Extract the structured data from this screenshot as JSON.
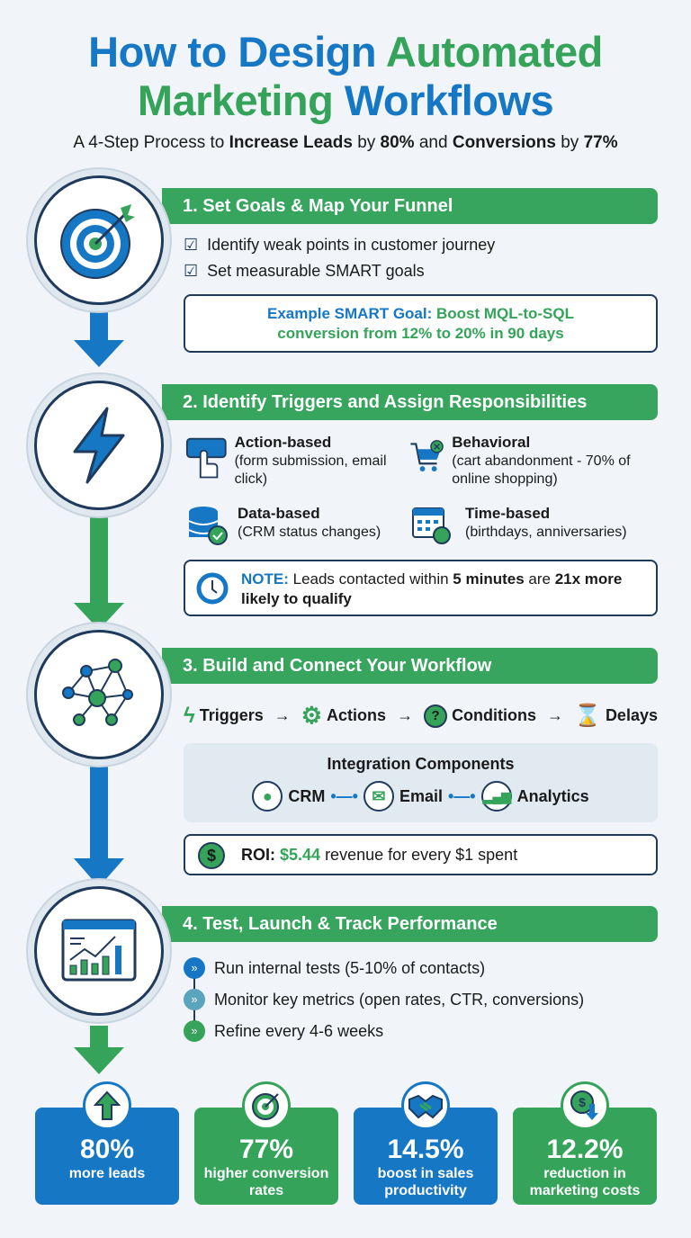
{
  "title": {
    "line1_a": "How to Design",
    "line1_b": "Automated",
    "line2_a": "Marketing",
    "line2_b": "Workflows"
  },
  "subtitle": {
    "p1": "A 4-Step Process to ",
    "b1": "Increase Leads",
    "p2": " by ",
    "b2": "80%",
    "p3": " and ",
    "b3": "Conversions",
    "p4": " by ",
    "b4": "77%"
  },
  "colors": {
    "blue": "#1677c5",
    "green": "#35a35a",
    "dark": "#1f3a5a"
  },
  "step1": {
    "icon": "target-icon",
    "title": "1. Set Goals & Map Your Funnel",
    "bullets": [
      "Identify weak points in customer journey",
      "Set measurable SMART goals"
    ],
    "example_label": "Example SMART Goal:",
    "example_text": "Boost MQL-to-SQL conversion from 12% to 20% in 90 days"
  },
  "step2": {
    "icon": "lightning-icon",
    "title": "2. Identify Triggers and Assign Responsibilities",
    "triggers": [
      {
        "icon": "click-icon",
        "name": "Action-based",
        "desc": "(form submission, email click)"
      },
      {
        "icon": "cart-icon",
        "name": "Behavioral",
        "desc": "(cart abandonment - 70% of online shopping)"
      },
      {
        "icon": "database-icon",
        "name": "Data-based",
        "desc": "(CRM status changes)"
      },
      {
        "icon": "calendar-icon",
        "name": "Time-based",
        "desc": "(birthdays, anniversaries)"
      }
    ],
    "note": {
      "label": "NOTE:",
      "p1": " Leads contacted within ",
      "b1": "5 minutes",
      "p2": " are ",
      "b2": "21x more likely to qualify"
    }
  },
  "step3": {
    "icon": "network-icon",
    "title": "3. Build and Connect Your Workflow",
    "flow": [
      "Triggers",
      "Actions",
      "Conditions",
      "Delays"
    ],
    "integration_title": "Integration Components",
    "integrations": [
      "CRM",
      "Email",
      "Analytics"
    ],
    "roi": {
      "label": "ROI:",
      "value": "$5.44",
      "text": " revenue for every $1 spent"
    }
  },
  "step4": {
    "icon": "chart-icon",
    "title": "4. Test, Launch & Track Performance",
    "bullets": [
      "Run internal tests (5-10% of contacts)",
      "Monitor key metrics (open rates, CTR, conversions)",
      "Refine every 4-6 weeks"
    ]
  },
  "stats": [
    {
      "value": "80%",
      "label": "more leads",
      "icon": "arrow-up-icon"
    },
    {
      "value": "77%",
      "label": "higher conversion rates",
      "icon": "target-icon"
    },
    {
      "value": "14.5%",
      "label": "boost in sales productivity",
      "icon": "handshake-icon"
    },
    {
      "value": "12.2%",
      "label": "reduction in marketing costs",
      "icon": "money-down-icon"
    }
  ]
}
